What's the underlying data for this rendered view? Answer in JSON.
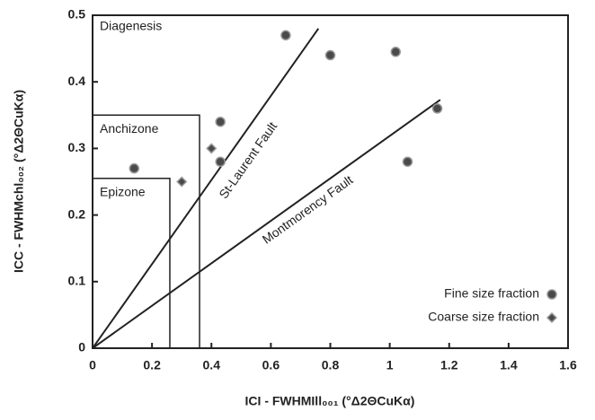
{
  "chart_data": {
    "type": "scatter",
    "xlabel": "ICI - FWHMIll₀₀₁ (°Δ2ΘCuKα)",
    "ylabel": "ICC - FWHMchl₀₀₂ (°Δ2ΘCuKα)",
    "xlim": [
      0,
      1.6
    ],
    "xticks": [
      0,
      0.2,
      0.4,
      0.6,
      0.8,
      1,
      1.2,
      1.4,
      1.6
    ],
    "ylim": [
      0,
      0.5
    ],
    "yticks": [
      0,
      0.1,
      0.2,
      0.3,
      0.4,
      0.5
    ],
    "series": [
      {
        "name": "Fine size fraction",
        "marker": "circle",
        "color": "#4a4a4a",
        "x": [
          0.14,
          0.43,
          0.43,
          0.65,
          0.8,
          1.02,
          1.06,
          1.16
        ],
        "values": [
          0.27,
          0.34,
          0.28,
          0.47,
          0.44,
          0.445,
          0.28,
          0.36
        ]
      },
      {
        "name": "Coarse size fraction",
        "marker": "diamond",
        "color": "#4a4a4a",
        "x": [
          0.3,
          0.4
        ],
        "values": [
          0.25,
          0.3
        ]
      }
    ],
    "lines": [
      {
        "name": "St-Laurent Fault",
        "x": [
          0,
          0.76
        ],
        "values": [
          0,
          0.48
        ]
      },
      {
        "name": "Montmorency Fault",
        "x": [
          0,
          1.17
        ],
        "values": [
          0,
          0.373
        ]
      }
    ],
    "zones": [
      {
        "name": "Epizone",
        "x": 0.26,
        "y": 0.255
      },
      {
        "name": "Anchizone",
        "x": 0.36,
        "y": 0.35
      }
    ],
    "region_label": "Diagenesis",
    "legend": "lower right"
  }
}
